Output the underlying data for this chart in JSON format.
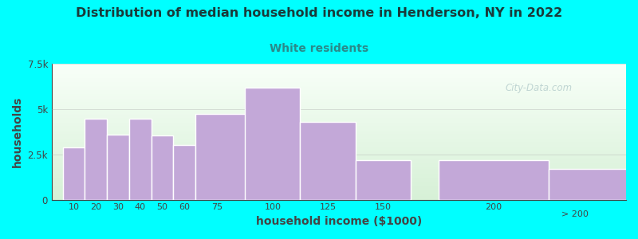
{
  "title": "Distribution of median household income in Henderson, NY in 2022",
  "subtitle": "White residents",
  "xlabel": "household income ($1000)",
  "ylabel": "households",
  "background_color": "#00FFFF",
  "plot_bg_gradient_top": "#d6f0d6",
  "plot_bg_gradient_bottom": "#f8fff8",
  "bar_color": "#C3A8D8",
  "bar_edge_color": "#ffffff",
  "title_color": "#1a3a3a",
  "subtitle_color": "#2a8a8a",
  "axis_color": "#444444",
  "tick_color": "#444444",
  "categories": [
    "10",
    "20",
    "30",
    "40",
    "50",
    "60",
    "75",
    "100",
    "125",
    "150",
    "200",
    "> 200"
  ],
  "bar_lefts": [
    5,
    15,
    25,
    35,
    45,
    55,
    65,
    87.5,
    112.5,
    137.5,
    175,
    225
  ],
  "bar_widths": [
    10,
    10,
    10,
    10,
    10,
    10,
    25,
    25,
    25,
    25,
    50,
    50
  ],
  "values": [
    2900,
    4450,
    3600,
    4450,
    3550,
    3000,
    4750,
    6200,
    4300,
    2200,
    2200,
    1700
  ],
  "xlim": [
    0,
    260
  ],
  "ylim": [
    0,
    7500
  ],
  "yticks": [
    0,
    2500,
    5000,
    7500
  ],
  "ytick_labels": [
    "0",
    "2.5k",
    "5k",
    "7.5k"
  ],
  "xtick_positions": [
    10,
    20,
    30,
    40,
    50,
    60,
    75,
    100,
    125,
    150,
    200
  ],
  "xtick_labels": [
    "10",
    "20",
    "30",
    "40",
    "50",
    "60",
    "75",
    "100",
    "125",
    "150",
    "200"
  ],
  "watermark_text": "City-Data.com"
}
